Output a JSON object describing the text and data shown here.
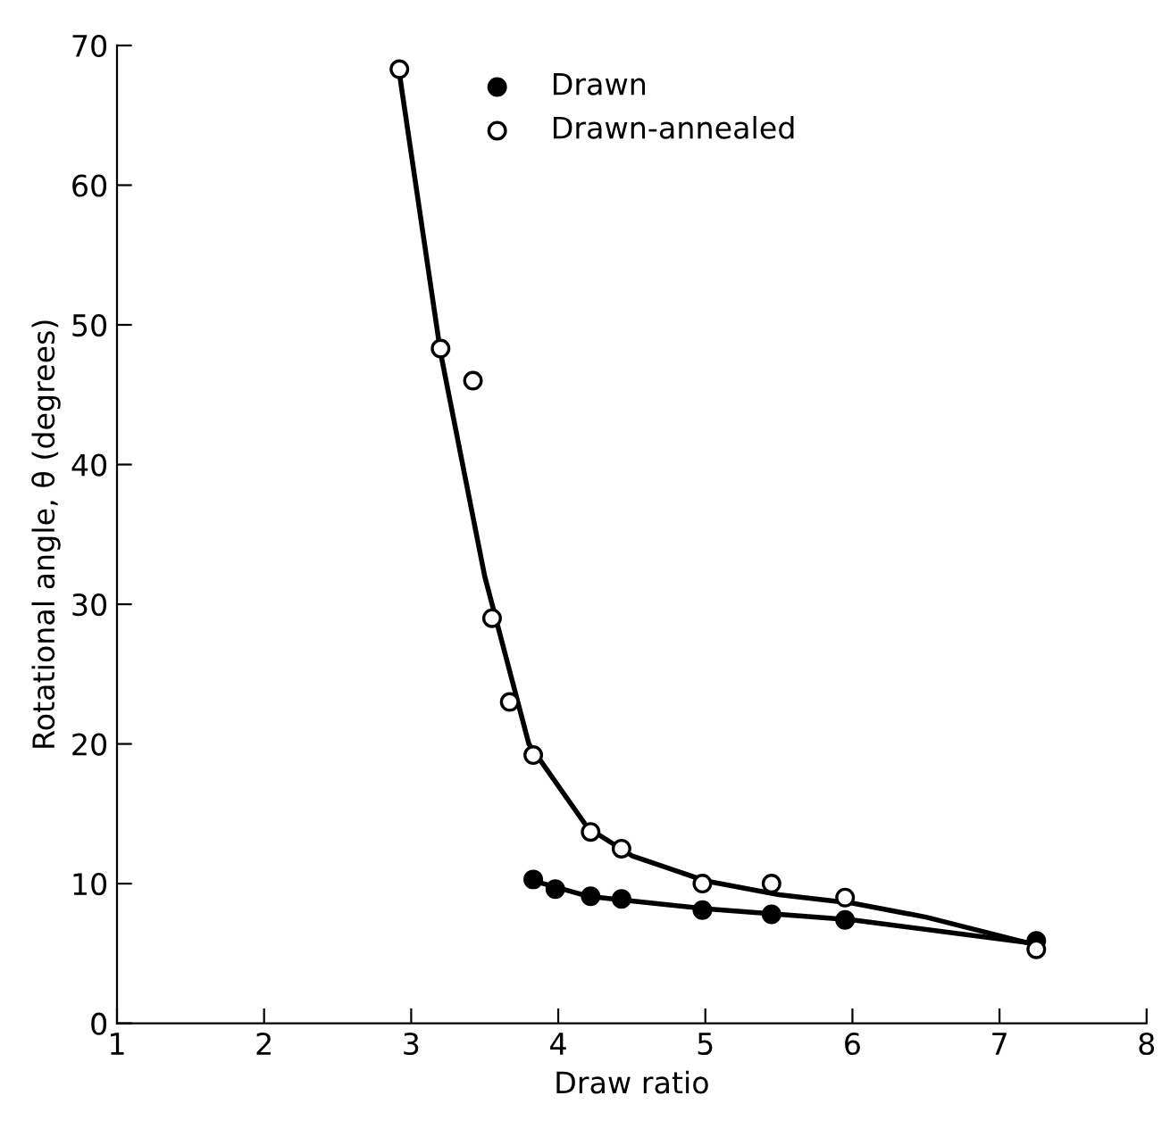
{
  "chart_data": {
    "type": "scatter",
    "xlabel": "Draw ratio",
    "ylabel": "Rotational angle, θ (degrees)",
    "xlim": [
      1,
      8
    ],
    "ylim": [
      0,
      70
    ],
    "xticks": [
      1,
      2,
      3,
      4,
      5,
      6,
      7,
      8
    ],
    "yticks": [
      0,
      10,
      20,
      30,
      40,
      50,
      60,
      70
    ],
    "grid": false,
    "legend": "top",
    "series": [
      {
        "name": "Drawn",
        "color": "#000000",
        "marker": "circle",
        "x": [
          3.83,
          3.98,
          4.22,
          4.43,
          4.98,
          5.45,
          5.95,
          7.25
        ],
        "values": [
          10.3,
          9.6,
          9.1,
          8.9,
          8.1,
          7.8,
          7.4,
          5.9
        ]
      },
      {
        "name": "Drawn-annealed",
        "color": "#ffffff",
        "marker": "circle",
        "x": [
          2.92,
          3.2,
          3.42,
          3.55,
          3.67,
          3.83,
          4.22,
          4.43,
          4.98,
          5.45,
          5.95,
          7.25
        ],
        "values": [
          68.3,
          48.3,
          46,
          29,
          23,
          19.2,
          13.7,
          12.5,
          10,
          10,
          9,
          5.3
        ]
      },
      {
        "type": "line",
        "color": "#000000",
        "marker": "none",
        "line_style": "solid",
        "x": [
          2.92,
          3.2,
          3.5,
          3.8,
          4.2,
          4.5,
          5,
          5.5,
          6,
          6.5,
          7.25
        ],
        "values": [
          68,
          48,
          32,
          20,
          14,
          12,
          10.2,
          9.2,
          8.6,
          7.6,
          5.6
        ]
      },
      {
        "type": "line",
        "color": "#000000",
        "marker": "none",
        "line_style": "solid",
        "x": [
          3.83,
          4.2,
          5,
          6,
          7.25
        ],
        "values": [
          10.2,
          9.1,
          8.2,
          7.4,
          5.7
        ]
      }
    ]
  }
}
